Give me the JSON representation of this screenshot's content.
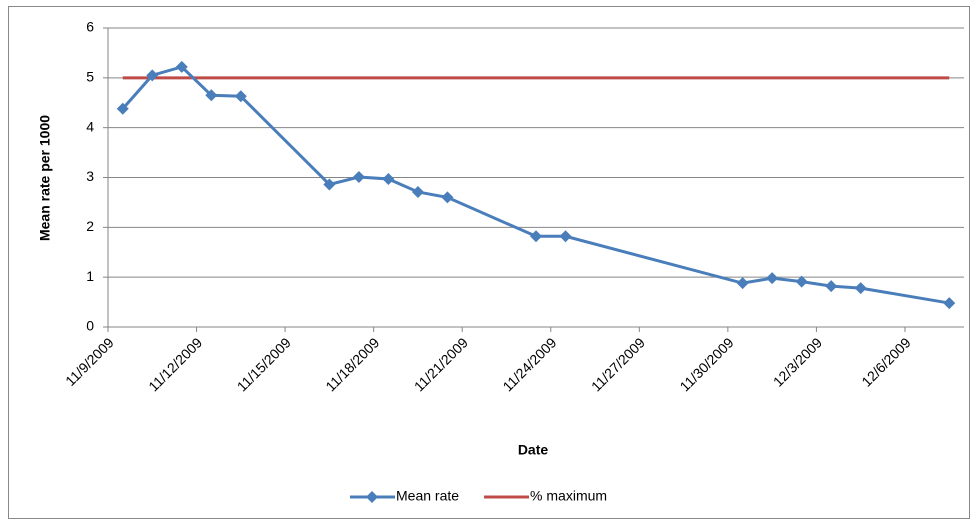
{
  "chart_data": {
    "type": "line",
    "x_label": "Date",
    "y_label": "Mean rate per 1000",
    "x": [
      "11/9/2009",
      "11/10/2009",
      "11/11/2009",
      "11/12/2009",
      "11/13/2009",
      "11/16/2009",
      "11/17/2009",
      "11/18/2009",
      "11/19/2009",
      "11/20/2009",
      "11/23/2009",
      "11/24/2009",
      "11/30/2009",
      "12/1/2009",
      "12/2/2009",
      "12/3/2009",
      "12/4/2009",
      "12/7/2009"
    ],
    "series": [
      {
        "name": "Mean rate",
        "color": "#4a7ebb",
        "marker": "diamond",
        "values": [
          4.38,
          5.05,
          5.22,
          4.65,
          4.63,
          2.86,
          3.01,
          2.97,
          2.71,
          2.6,
          1.82,
          1.82,
          0.88,
          0.98,
          0.91,
          0.82,
          0.78,
          0.48
        ]
      },
      {
        "name": "% maximum",
        "color": "#be4b48",
        "marker": "none",
        "values": [
          5,
          5,
          5,
          5,
          5,
          5,
          5,
          5,
          5,
          5,
          5,
          5,
          5,
          5,
          5,
          5,
          5,
          5
        ]
      }
    ],
    "xlim": [
      "11/9/2009",
      "12/8/2009"
    ],
    "xticks": [
      "11/9/2009",
      "11/12/2009",
      "11/15/2009",
      "11/18/2009",
      "11/21/2009",
      "11/24/2009",
      "11/27/2009",
      "11/30/2009",
      "12/3/2009",
      "12/6/2009"
    ],
    "ylim": [
      0,
      6
    ],
    "yticks": [
      0,
      1,
      2,
      3,
      4,
      5,
      6
    ],
    "grid": true,
    "legend": "bottom"
  }
}
